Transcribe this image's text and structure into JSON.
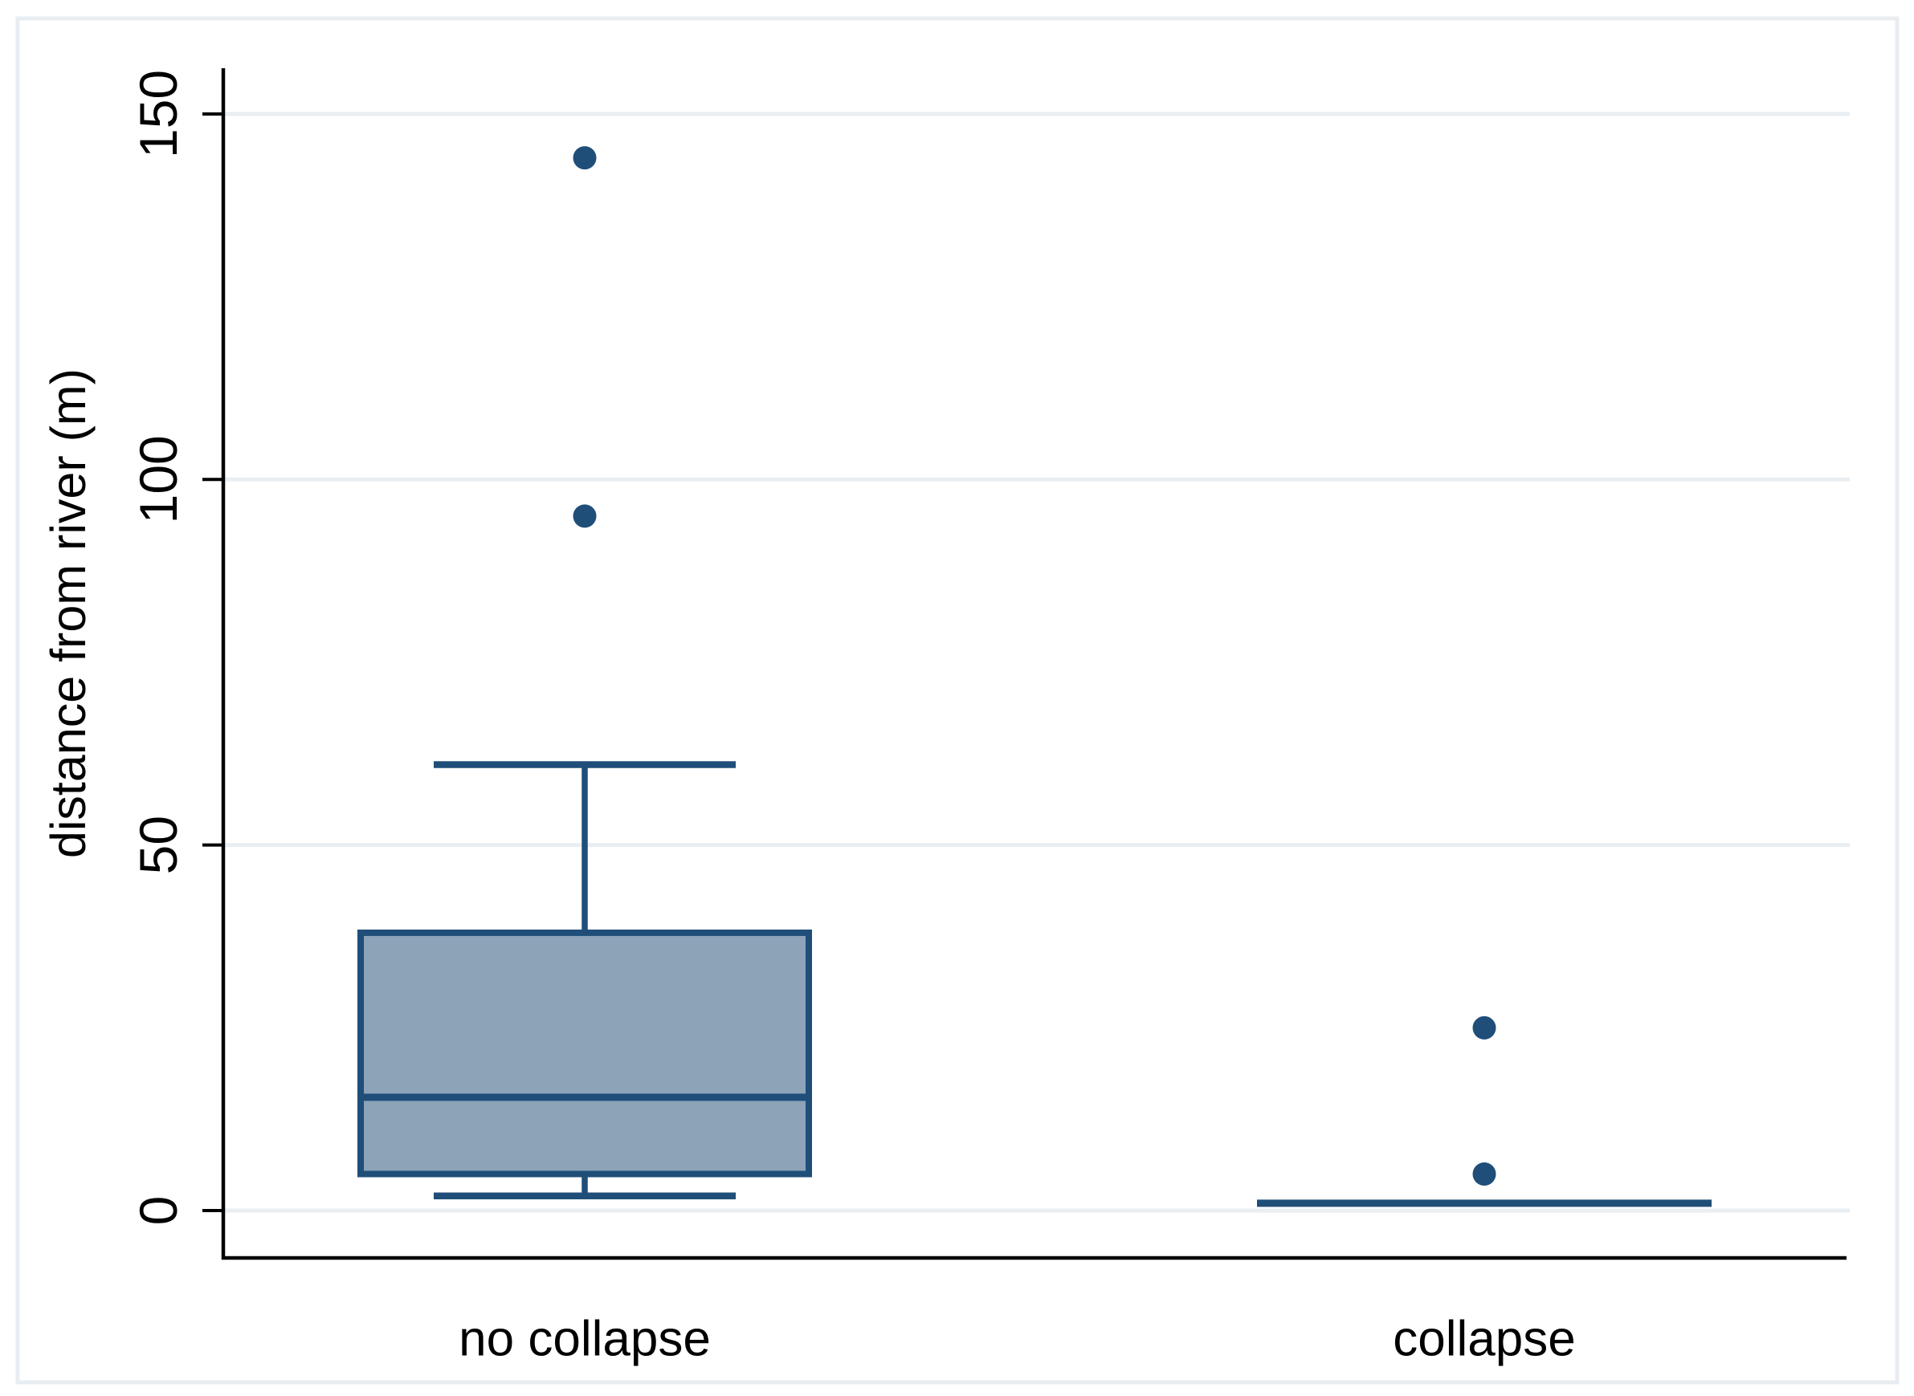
{
  "figure": {
    "background": "#ffffff",
    "border_color": "#e8edf2"
  },
  "chart_data": {
    "type": "box",
    "orientation": "vertical",
    "title": "",
    "xlabel": "",
    "ylabel": "distance from river (m)",
    "categories": [
      "no collapse",
      "collapse"
    ],
    "y_ticks": [
      0,
      50,
      100,
      150
    ],
    "ylim": [
      0,
      160
    ],
    "grid": true,
    "legend": "none",
    "series": [
      {
        "category": "no collapse",
        "whisker_low": 2,
        "q1": 5,
        "median": 15.5,
        "q3": 38,
        "whisker_high": 61,
        "outliers": [
          95,
          144
        ]
      },
      {
        "category": "collapse",
        "whisker_low": 1,
        "q1": 1,
        "median": 1,
        "q3": 1,
        "whisker_high": 1,
        "outliers": [
          5,
          25
        ]
      }
    ],
    "colors": {
      "box_fill": "#8ca3b8",
      "box_stroke": "#1f4e79",
      "median": "#1f4e79",
      "whisker": "#1f4e79",
      "outlier_dot": "#1f4e79",
      "grid": "#e9eef2",
      "figure_border": "#e8edf2",
      "axis": "#000000",
      "text": "#000000"
    }
  }
}
